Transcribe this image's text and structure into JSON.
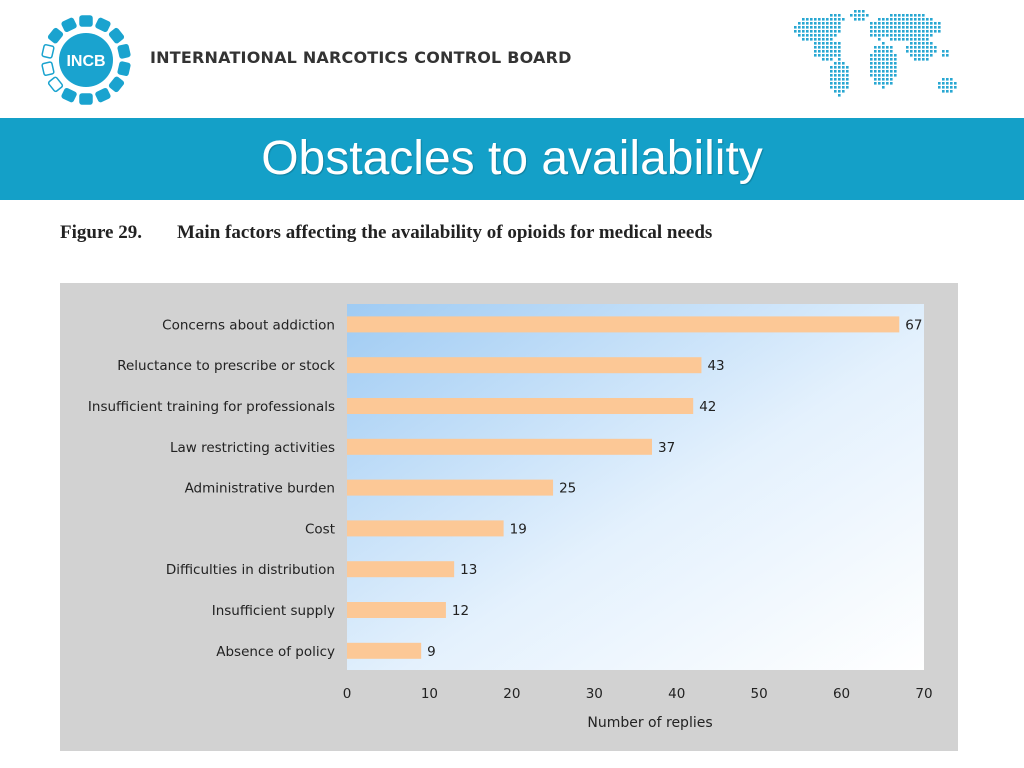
{
  "header": {
    "logo_text": "INCB",
    "org_name": "INTERNATIONAL NARCOTICS CONTROL BOARD"
  },
  "slide": {
    "title": "Obstacles to availability"
  },
  "figure": {
    "number": "Figure 29.",
    "caption": "Main factors affecting the availability of opioids for medical needs"
  },
  "colors": {
    "brand_blue": "#14a0c8",
    "bar_fill": "#fcc896",
    "panel_gray": "#d2d2d2"
  },
  "chart_data": {
    "type": "bar",
    "orientation": "horizontal",
    "categories": [
      "Concerns about addiction",
      "Reluctance to prescribe or stock",
      "Insufficient training for professionals",
      "Law restricting activities",
      "Administrative burden",
      "Cost",
      "Difficulties in distribution",
      "Insufficient supply",
      "Absence of policy"
    ],
    "values": [
      67,
      43,
      42,
      37,
      25,
      19,
      13,
      12,
      9
    ],
    "xlabel": "Number of replies",
    "ylabel": "",
    "xlim": [
      0,
      70
    ],
    "xticks": [
      0,
      10,
      20,
      30,
      40,
      50,
      60,
      70
    ],
    "grid": false,
    "data_labels": true
  }
}
